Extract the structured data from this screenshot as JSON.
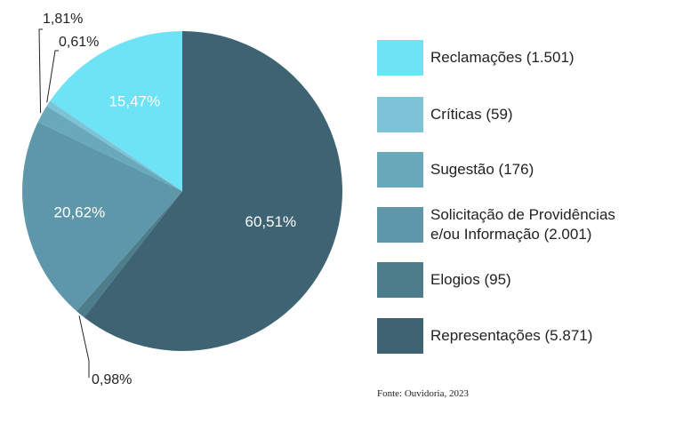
{
  "chart_data": {
    "type": "pie",
    "slices": [
      {
        "name": "Representações (5.871)",
        "value": 60.51,
        "display": "60,51%",
        "color": "#3e6474"
      },
      {
        "name": "Elogios (95)",
        "value": 0.98,
        "display": "0,98%",
        "color": "#4d7c8a"
      },
      {
        "name": "Solicitação de Providências e/ou Informação (2.001)",
        "value": 20.62,
        "display": "20,62%",
        "color": "#5d97a9"
      },
      {
        "name": "Sugestão (176)",
        "value": 1.81,
        "display": "1,81%",
        "color": "#6aa9bb"
      },
      {
        "name": "Críticas (59)",
        "value": 0.61,
        "display": "0,61%",
        "color": "#7ec2d7"
      },
      {
        "name": "Reclamações (1.501)",
        "value": 15.47,
        "display": "15,47%",
        "color": "#6ee3f5"
      }
    ],
    "legend_position": "right",
    "source": "Fonte: Ouvidoria, 2023"
  },
  "legend": {
    "items": [
      {
        "label": "Reclamações (1.501)",
        "color": "#6ee3f5"
      },
      {
        "label": "Críticas (59)",
        "color": "#7ec2d7"
      },
      {
        "label": "Sugestão (176)",
        "color": "#6aa9bb"
      },
      {
        "label": "Solicitação de Providências e/ou Informação (2.001)",
        "color": "#5d97a9"
      },
      {
        "label": "Elogios (95)",
        "color": "#4d7c8a"
      },
      {
        "label": "Representações (5.871)",
        "color": "#3e6474"
      }
    ]
  }
}
